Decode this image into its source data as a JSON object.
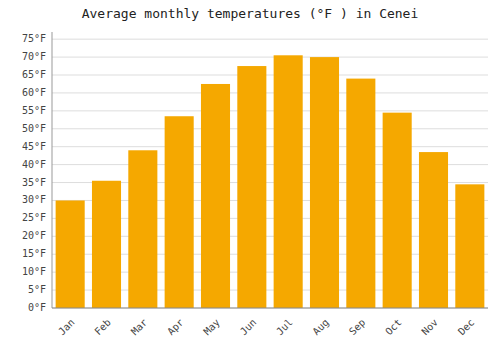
{
  "chart_data": {
    "type": "bar",
    "title": "Average monthly temperatures (°F ) in Cenei",
    "categories": [
      "Jan",
      "Feb",
      "Mar",
      "Apr",
      "May",
      "Jun",
      "Jul",
      "Aug",
      "Sep",
      "Oct",
      "Nov",
      "Dec"
    ],
    "values": [
      30,
      35.5,
      44,
      53.5,
      62.5,
      67.5,
      70.5,
      70,
      64,
      54.5,
      43.5,
      34.5
    ],
    "color": "#F5A800",
    "ylim": [
      0,
      77
    ],
    "yticks": [
      {
        "value": 0,
        "label": "0°F"
      },
      {
        "value": 5,
        "label": "5°F"
      },
      {
        "value": 10,
        "label": "10°F"
      },
      {
        "value": 15,
        "label": "15°F"
      },
      {
        "value": 20,
        "label": "20°F"
      },
      {
        "value": 25,
        "label": "25°F"
      },
      {
        "value": 30,
        "label": "30°F"
      },
      {
        "value": 35,
        "label": "35°F"
      },
      {
        "value": 40,
        "label": "40°F"
      },
      {
        "value": 45,
        "label": "45°F"
      },
      {
        "value": 50,
        "label": "50°F"
      },
      {
        "value": 55,
        "label": "55°F"
      },
      {
        "value": 60,
        "label": "60°F"
      },
      {
        "value": 65,
        "label": "65°F"
      },
      {
        "value": 70,
        "label": "70°F"
      },
      {
        "value": 75,
        "label": "75°F"
      }
    ],
    "grid": true
  }
}
